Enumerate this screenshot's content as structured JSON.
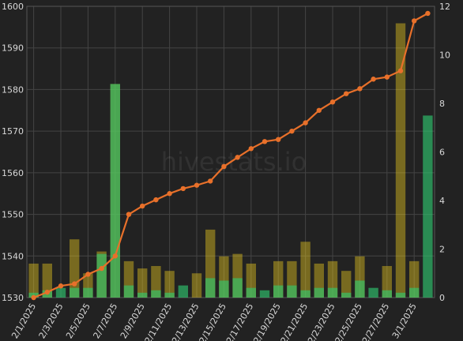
{
  "watermark": "hivestats.io",
  "chart_data": {
    "type": "bar+line",
    "title": "",
    "xlabel": "",
    "ylabel_left": "",
    "ylabel_right": "",
    "grid": true,
    "left_axis": {
      "min": 1530,
      "max": 1600,
      "ticks": [
        1530,
        1540,
        1550,
        1560,
        1570,
        1580,
        1590,
        1600
      ]
    },
    "right_axis": {
      "min": 0,
      "max": 12,
      "ticks": [
        0,
        2,
        4,
        6,
        8,
        10,
        12
      ]
    },
    "categories": [
      "2/1/2025",
      "2/2/2025",
      "2/3/2025",
      "2/4/2025",
      "2/5/2025",
      "2/6/2025",
      "2/7/2025",
      "2/8/2025",
      "2/9/2025",
      "2/10/2025",
      "2/11/2025",
      "2/12/2025",
      "2/13/2025",
      "2/14/2025",
      "2/15/2025",
      "2/16/2025",
      "2/17/2025",
      "2/18/2025",
      "2/19/2025",
      "2/20/2025",
      "2/21/2025",
      "2/22/2025",
      "2/23/2025",
      "2/24/2025",
      "2/25/2025",
      "2/26/2025",
      "2/27/2025",
      "2/28/2025",
      "3/1/2025",
      "3/2/2025"
    ],
    "x_tick_labels": [
      "2/1/2025",
      "2/3/2025",
      "2/5/2025",
      "2/7/2025",
      "2/9/2025",
      "2/11/2025",
      "2/13/2025",
      "2/15/2025",
      "2/17/2025",
      "2/19/2025",
      "2/21/2025",
      "2/23/2025",
      "2/25/2025",
      "2/27/2025",
      "3/1/2025"
    ],
    "series": [
      {
        "axis": "right",
        "kind": "bar",
        "color": "#f0d020",
        "values": [
          1.4,
          1.4,
          0,
          2.4,
          1.0,
          1.9,
          8.8,
          1.5,
          1.2,
          1.3,
          1.1,
          0,
          1.0,
          2.8,
          1.7,
          1.8,
          1.4,
          0,
          1.5,
          1.5,
          2.3,
          1.4,
          1.5,
          1.1,
          1.7,
          0,
          1.3,
          11.3,
          1.5,
          0
        ]
      },
      {
        "axis": "right",
        "kind": "bar",
        "color": "#2ecc71",
        "values": [
          0.2,
          0.3,
          0.4,
          0.4,
          0.4,
          1.8,
          8.8,
          0.5,
          0.2,
          0.3,
          0.2,
          0.5,
          0,
          0.8,
          0.7,
          0.8,
          0.4,
          0.3,
          0.5,
          0.5,
          0.3,
          0.4,
          0.4,
          0.2,
          0.7,
          0.4,
          0.3,
          0.2,
          0.4,
          7.5
        ]
      },
      {
        "axis": "left",
        "kind": "line",
        "color": "#e8702a",
        "values": [
          1530,
          1531.3,
          1532.8,
          1533.3,
          1535.6,
          1537,
          1540,
          1550,
          1552,
          1553.5,
          1555,
          1556.2,
          1557,
          1558,
          1561.5,
          1563.7,
          1565.8,
          1567.5,
          1568,
          1570,
          1572,
          1575,
          1577,
          1579,
          1580.2,
          1582.5,
          1583,
          1584.5,
          1596.5,
          1598.3
        ]
      }
    ]
  }
}
